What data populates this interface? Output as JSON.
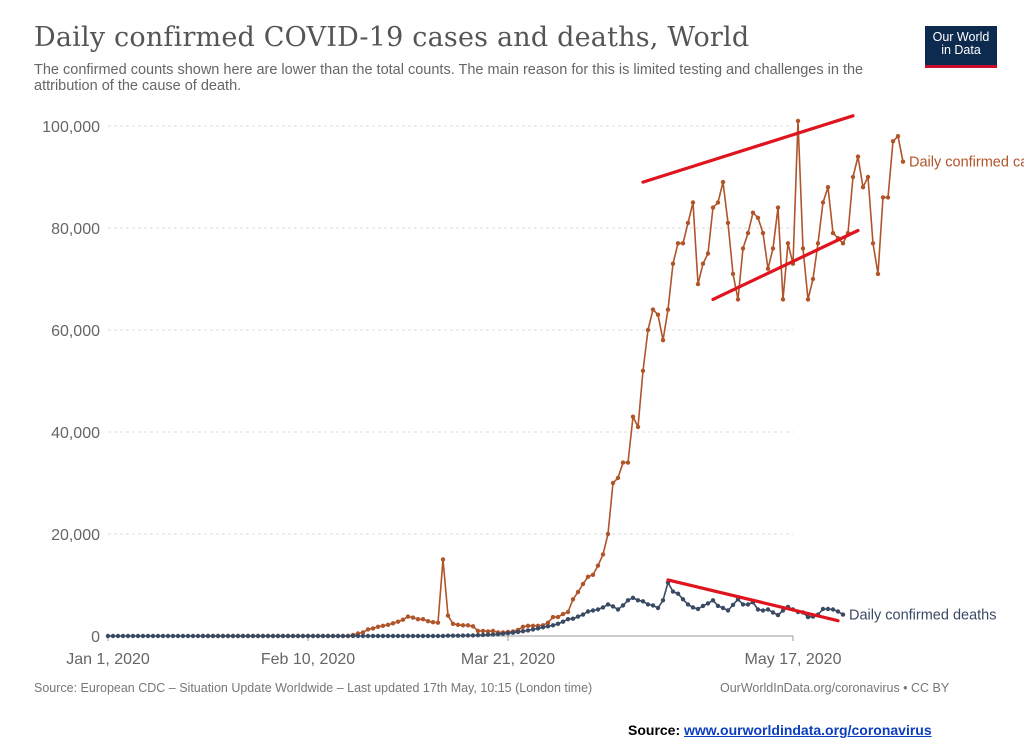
{
  "header": {
    "title": "Daily confirmed COVID-19 cases and deaths, World",
    "subtitle": "The confirmed counts shown here are lower than the total counts. The main reason for this is limited testing and challenges in the attribution of the cause of death."
  },
  "logo": {
    "line1": "Our World",
    "line2": "in Data",
    "bg_color": "#0d2a4f",
    "accent_color": "#c8102e"
  },
  "footer": {
    "source_note": "Source: European CDC – Situation Update Worldwide – Last updated 17th May, 10:15 (London time)",
    "license_note": "OurWorldInData.org/coronavirus • CC BY",
    "source_label": "Source:",
    "source_link": "www.ourworldindata.org/coronavirus"
  },
  "colors": {
    "cases": "#b0542a",
    "deaths": "#3b4a63",
    "trend": "#e0141e",
    "grid": "#dddddd"
  },
  "chart_data": {
    "type": "line",
    "title": "Daily confirmed COVID-19 cases and deaths, World",
    "xlabel": "",
    "ylabel": "",
    "ylim": [
      0,
      100000
    ],
    "y_ticks": [
      0,
      20000,
      40000,
      60000,
      80000,
      100000
    ],
    "y_tick_labels": [
      "0",
      "20,000",
      "40,000",
      "60,000",
      "80,000",
      "100,000"
    ],
    "x_range": [
      "2020-01-01",
      "2020-05-17"
    ],
    "x_ticks": [
      "2020-01-01",
      "2020-02-10",
      "2020-03-21",
      "2020-05-17"
    ],
    "x_tick_labels": [
      "Jan 1, 2020",
      "Feb 10, 2020",
      "Mar 21, 2020",
      "May 17, 2020"
    ],
    "grid": "horizontal dashed",
    "legend": "inline labels at line ends",
    "series": [
      {
        "name": "Daily confirmed cases",
        "color": "#b0542a",
        "start_date": "2020-01-20",
        "values": [
          0,
          0,
          0,
          0,
          0,
          0,
          0,
          0,
          0,
          0,
          0,
          0,
          0,
          0,
          0,
          0,
          0,
          0,
          0,
          0,
          0,
          0,
          0,
          0,
          0,
          0,
          0,
          0,
          0,
          0,
          200,
          500,
          700,
          1300,
          1500,
          1800,
          2000,
          2200,
          2500,
          2800,
          3200,
          3800,
          3600,
          3300,
          3300,
          2900,
          2700,
          2600,
          15000,
          4000,
          2400,
          2200,
          2100,
          2100,
          1900,
          1000,
          1000,
          900,
          1000,
          700,
          700,
          800,
          900,
          1200,
          1800,
          2000,
          2000,
          2000,
          2100,
          2600,
          3700,
          3700,
          4300,
          4700,
          7200,
          8600,
          10200,
          11600,
          12000,
          13800,
          16000,
          20000,
          30000,
          31000,
          34000,
          34000,
          43000,
          41000,
          52000,
          60000,
          64000,
          63000,
          58000,
          64000,
          73000,
          77000,
          77000,
          81000,
          85000,
          69000,
          73000,
          75000,
          84000,
          85000,
          89000,
          81000,
          71000,
          66000,
          76000,
          79000,
          83000,
          82000,
          79000,
          72000,
          76000,
          84000,
          66000,
          77000,
          73000,
          101000,
          76000,
          66000,
          70000,
          77000,
          85000,
          88000,
          79000,
          78000,
          77000,
          79000,
          90000,
          94000,
          88000,
          90000,
          77000,
          71000,
          86000,
          86000,
          97000,
          98000,
          93000
        ]
      },
      {
        "name": "Daily confirmed deaths",
        "color": "#3b4a63",
        "start_date": "2020-01-01",
        "values": [
          0,
          0,
          0,
          0,
          0,
          0,
          0,
          0,
          0,
          0,
          0,
          0,
          0,
          0,
          0,
          0,
          0,
          0,
          0,
          0,
          0,
          0,
          0,
          0,
          0,
          0,
          0,
          0,
          0,
          0,
          0,
          0,
          0,
          0,
          0,
          0,
          0,
          0,
          0,
          0,
          0,
          0,
          0,
          0,
          0,
          0,
          0,
          0,
          0,
          0,
          0,
          0,
          0,
          0,
          0,
          0,
          0,
          0,
          0,
          0,
          0,
          0,
          0,
          0,
          0,
          0,
          0,
          0,
          50,
          50,
          50,
          80,
          100,
          120,
          150,
          200,
          250,
          300,
          350,
          450,
          550,
          650,
          800,
          950,
          1100,
          1300,
          1500,
          1700,
          1900,
          2100,
          2400,
          2800,
          3300,
          3400,
          3800,
          4200,
          4800,
          5000,
          5200,
          5600,
          6200,
          5800,
          5200,
          6000,
          7000,
          7500,
          7000,
          6800,
          6200,
          6000,
          5500,
          7000,
          10500,
          8700,
          8300,
          7200,
          6200,
          5600,
          5300,
          5900,
          6400,
          7000,
          5900,
          5500,
          5000,
          6100,
          7200,
          6200,
          6200,
          6600,
          5200,
          5000,
          5200,
          4600,
          4100,
          5000,
          5700,
          5200,
          4700,
          4600,
          3700,
          3800,
          4200,
          5300,
          5300,
          5200,
          4800,
          4200
        ]
      }
    ],
    "annotations": [
      {
        "kind": "trend-line",
        "from": [
          "2020-04-17",
          89000
        ],
        "to": [
          "2020-05-29",
          102000
        ]
      },
      {
        "kind": "trend-line",
        "from": [
          "2020-05-01",
          66000
        ],
        "to": [
          "2020-05-30",
          79500
        ]
      },
      {
        "kind": "trend-line",
        "from": [
          "2020-04-22",
          11000
        ],
        "to": [
          "2020-05-26",
          3000
        ]
      }
    ]
  }
}
